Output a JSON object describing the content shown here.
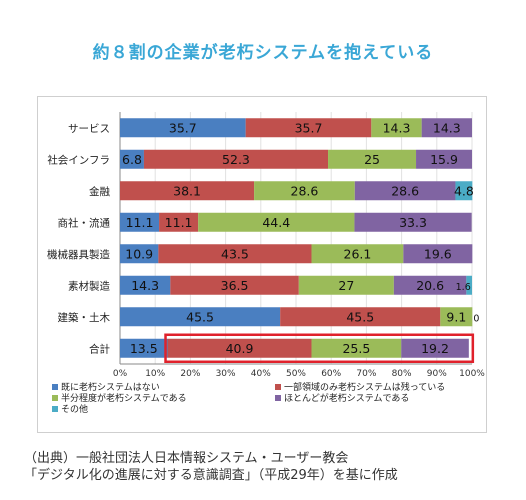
{
  "title": "約８割の企業が老朽システムを抱えている",
  "source_line1": "（出典）一般社団法人日本情報システム・ユーザー教会",
  "source_line2": "「デジタル化の進展に対する意識調査」（平成29年）を基に作成",
  "chart_data": {
    "type": "bar",
    "orientation": "horizontal-stacked-100",
    "categories": [
      "サービス",
      "社会インフラ",
      "金融",
      "商社・流通",
      "機械器具製造",
      "素材製造",
      "建築・土木",
      "合計"
    ],
    "series": [
      {
        "name": "既に老朽システムはない",
        "color": "#4a7fc1",
        "values": [
          35.7,
          6.8,
          0,
          11.1,
          10.9,
          14.3,
          45.5,
          13.5
        ],
        "labels": [
          "35.7",
          "6.8",
          "0",
          "11.1",
          "10.9",
          "14.3",
          "45.5",
          "13.5"
        ]
      },
      {
        "name": "一部領域のみ老朽システムは残っている",
        "color": "#c0504d",
        "values": [
          35.7,
          52.3,
          38.1,
          11.1,
          43.5,
          36.5,
          45.5,
          40.9
        ],
        "labels": [
          "35.7",
          "52.3",
          "38.1",
          "11.1",
          "43.5",
          "36.5",
          "45.5",
          "40.9"
        ]
      },
      {
        "name": "半分程度が老朽システムである",
        "color": "#9bbb59",
        "values": [
          14.3,
          25,
          28.6,
          44.4,
          26.1,
          27,
          9.1,
          25.5
        ],
        "labels": [
          "14.3",
          "25",
          "28.6",
          "44.4",
          "26.1",
          "27",
          "9.1",
          "25.5"
        ]
      },
      {
        "name": "ほとんどが老朽システムである",
        "color": "#8064a2",
        "values": [
          14.3,
          15.9,
          28.6,
          33.3,
          19.6,
          20.6,
          0,
          19.2
        ],
        "labels": [
          "14.3",
          "15.9",
          "28.6",
          "33.3",
          "19.6",
          "20.6",
          "0",
          "19.2"
        ]
      },
      {
        "name": "その他",
        "color": "#4bacc6",
        "values": [
          0,
          0,
          4.8,
          0,
          0,
          1.6,
          0,
          0
        ],
        "labels": [
          "",
          "",
          "4.8",
          "",
          "",
          "1.6",
          "",
          ""
        ]
      }
    ],
    "x_ticks": [
      "0%",
      "10%",
      "20%",
      "30%",
      "40%",
      "50%",
      "60%",
      "70%",
      "80%",
      "90%",
      "100%"
    ],
    "xlim": [
      0,
      100
    ],
    "highlight": {
      "category": "合計",
      "series": [
        1,
        2,
        3
      ],
      "color": "#e0212b"
    },
    "legend_position": "bottom"
  }
}
